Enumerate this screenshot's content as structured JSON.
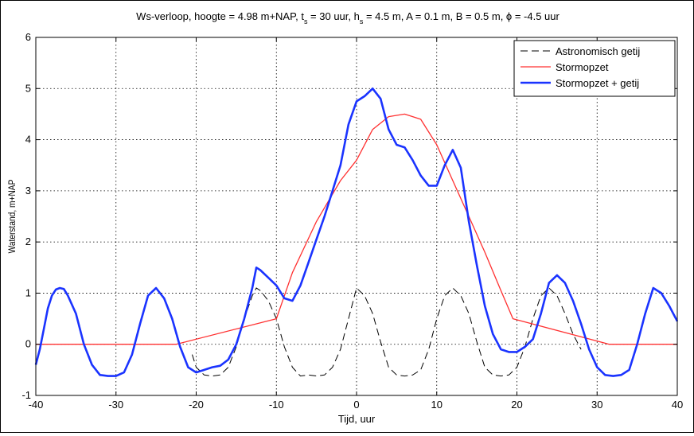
{
  "chart_data": {
    "type": "line",
    "title": {
      "parts": [
        {
          "t": "Ws-verloop, hoogte = 4.98 m+NAP, t"
        },
        {
          "t": "s",
          "sub": true
        },
        {
          "t": " = 30 uur, h"
        },
        {
          "t": "s",
          "sub": true
        },
        {
          "t": " = 4.5 m, A = 0.1 m, B = 0.5 m, ϕ = -4.5 uur"
        }
      ]
    },
    "xlabel": "Tijd, uur",
    "ylabel": "Waterstand, m+NAP",
    "xlim": [
      -40,
      40
    ],
    "ylim": [
      -1,
      6
    ],
    "xticks": [
      -40,
      -30,
      -20,
      -10,
      0,
      10,
      20,
      30,
      40
    ],
    "yticks": [
      -1,
      0,
      1,
      2,
      3,
      4,
      5,
      6
    ],
    "grid": true,
    "legend_position": "top-right",
    "series": [
      {
        "name": "Astronomisch getij",
        "color": "#000000",
        "style": "dashed",
        "x": [
          -20.5,
          -20,
          -19,
          -18,
          -17,
          -16,
          -15,
          -14,
          -13,
          -12.5,
          -12,
          -11,
          -10,
          -9,
          -8,
          -7,
          -6,
          -5,
          -4,
          -3,
          -2,
          -1,
          0,
          1,
          2,
          3,
          4,
          5,
          6,
          7,
          8,
          9,
          10,
          11,
          12,
          13,
          14,
          15,
          16,
          17,
          18,
          19,
          20,
          21,
          22,
          23,
          24,
          25,
          26,
          27,
          28
        ],
        "y": [
          -0.2,
          -0.45,
          -0.6,
          -0.62,
          -0.6,
          -0.45,
          -0.05,
          0.5,
          0.95,
          1.1,
          1.05,
          0.85,
          0.5,
          -0.05,
          -0.45,
          -0.62,
          -0.6,
          -0.62,
          -0.6,
          -0.45,
          -0.1,
          0.5,
          1.1,
          0.95,
          0.6,
          0.05,
          -0.45,
          -0.6,
          -0.62,
          -0.6,
          -0.5,
          -0.1,
          0.5,
          0.95,
          1.1,
          0.95,
          0.6,
          0.05,
          -0.45,
          -0.6,
          -0.62,
          -0.6,
          -0.45,
          -0.05,
          0.5,
          0.95,
          1.1,
          0.95,
          0.6,
          0.2,
          -0.1
        ]
      },
      {
        "name": "Stormopzet",
        "color": "#ff3030",
        "style": "solid",
        "x": [
          -40,
          -22.5,
          -10,
          -8,
          -5,
          -2,
          0,
          2,
          4,
          6,
          8,
          10,
          12,
          14,
          16,
          18,
          19.5,
          31.5,
          40
        ],
        "y": [
          0,
          0,
          0.5,
          1.4,
          2.4,
          3.2,
          3.6,
          4.2,
          4.45,
          4.5,
          4.4,
          3.9,
          3.2,
          2.5,
          1.8,
          1.05,
          0.5,
          0,
          0
        ]
      },
      {
        "name": "Stormopzet + getij",
        "color": "#1a33ff",
        "style": "solid",
        "x": [
          -40,
          -39.5,
          -39,
          -38.5,
          -38,
          -37.5,
          -37,
          -36.5,
          -36,
          -35,
          -34,
          -33,
          -32,
          -31,
          -30,
          -29,
          -28,
          -27,
          -26,
          -25,
          -24,
          -23,
          -22,
          -21,
          -20,
          -19,
          -18,
          -17,
          -16,
          -15,
          -14,
          -13,
          -12.5,
          -12,
          -11,
          -10,
          -9,
          -8,
          -7,
          -6,
          -5,
          -4,
          -3,
          -2,
          -1,
          0,
          1,
          2,
          3,
          4,
          5,
          6,
          7,
          8,
          9,
          10,
          11,
          12,
          13,
          14,
          15,
          16,
          17,
          18,
          19,
          20,
          21,
          22,
          23,
          24,
          25,
          26,
          27,
          28,
          29,
          30,
          31,
          32,
          33,
          34,
          35,
          36,
          37,
          38,
          39,
          40
        ],
        "y": [
          -0.4,
          -0.1,
          0.3,
          0.7,
          0.95,
          1.07,
          1.1,
          1.08,
          0.95,
          0.6,
          0.0,
          -0.4,
          -0.6,
          -0.62,
          -0.62,
          -0.55,
          -0.2,
          0.4,
          0.95,
          1.1,
          0.9,
          0.5,
          -0.05,
          -0.45,
          -0.55,
          -0.5,
          -0.45,
          -0.42,
          -0.3,
          0.0,
          0.5,
          1.1,
          1.5,
          1.45,
          1.3,
          1.15,
          0.9,
          0.85,
          1.15,
          1.6,
          2.05,
          2.5,
          3.0,
          3.5,
          4.3,
          4.75,
          4.85,
          5.0,
          4.8,
          4.2,
          3.9,
          3.85,
          3.6,
          3.3,
          3.1,
          3.1,
          3.5,
          3.8,
          3.45,
          2.4,
          1.55,
          0.75,
          0.2,
          -0.1,
          -0.15,
          -0.15,
          -0.05,
          0.1,
          0.6,
          1.2,
          1.35,
          1.2,
          0.85,
          0.4,
          -0.1,
          -0.45,
          -0.6,
          -0.62,
          -0.6,
          -0.5,
          0.0,
          0.6,
          1.1,
          1.0,
          0.75,
          0.45
        ]
      }
    ]
  }
}
